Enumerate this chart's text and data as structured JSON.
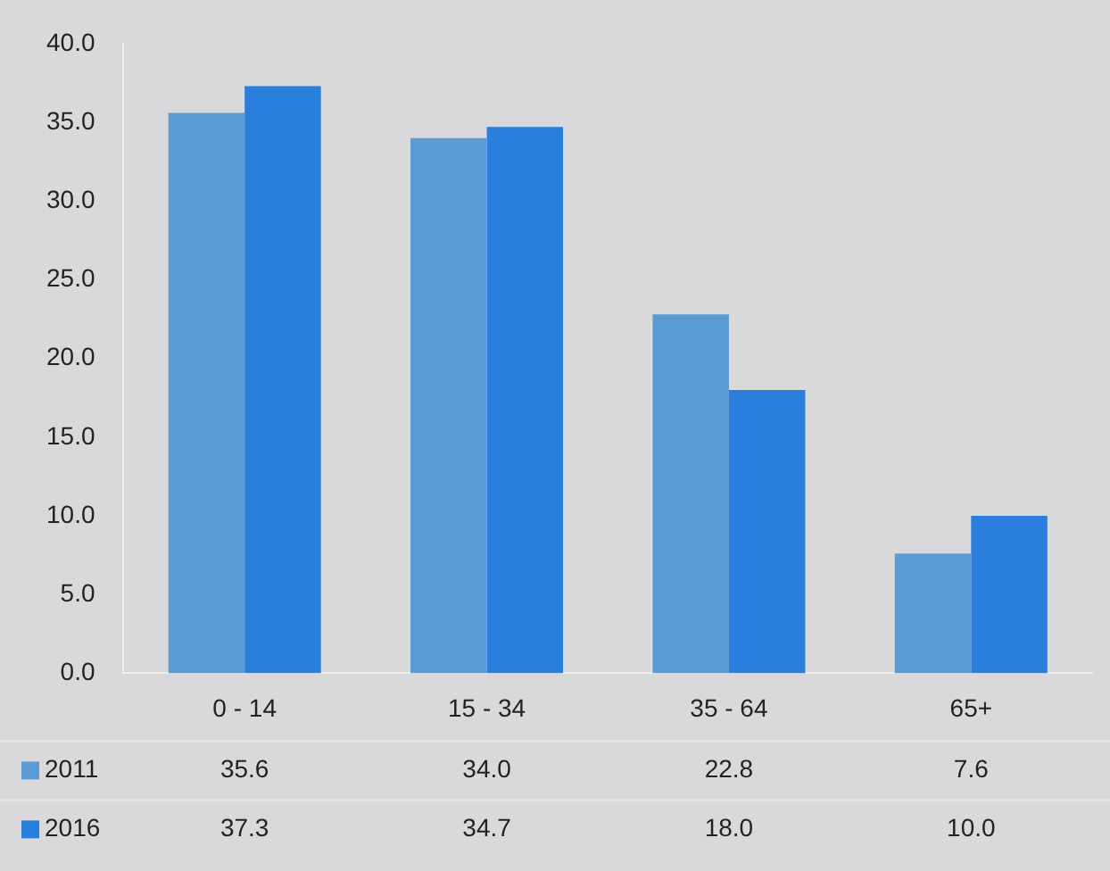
{
  "chart_data": {
    "type": "bar",
    "categories": [
      "0 - 14",
      "15 - 34",
      "35 - 64",
      "65+"
    ],
    "series": [
      {
        "name": "2011",
        "color": "#5b9bd5",
        "values": [
          35.6,
          34.0,
          22.8,
          7.6
        ],
        "value_labels": [
          "35.6",
          "34.0",
          "22.8",
          "7.6"
        ]
      },
      {
        "name": "2016",
        "color": "#2a7fdc",
        "values": [
          37.3,
          34.7,
          18.0,
          10.0
        ],
        "value_labels": [
          "37.3",
          "34.7",
          "18.0",
          "10.0"
        ]
      }
    ],
    "ylim": [
      0,
      40
    ],
    "yticks": [
      {
        "value": 0,
        "label": "0.0"
      },
      {
        "value": 5,
        "label": "5.0"
      },
      {
        "value": 10,
        "label": "10.0"
      },
      {
        "value": 15,
        "label": "15.0"
      },
      {
        "value": 20,
        "label": "20.0"
      },
      {
        "value": 25,
        "label": "25.0"
      },
      {
        "value": 30,
        "label": "30.0"
      },
      {
        "value": 35,
        "label": "35.0"
      },
      {
        "value": 40,
        "label": "40.0"
      }
    ],
    "grid": false,
    "legend": "bottom left"
  }
}
